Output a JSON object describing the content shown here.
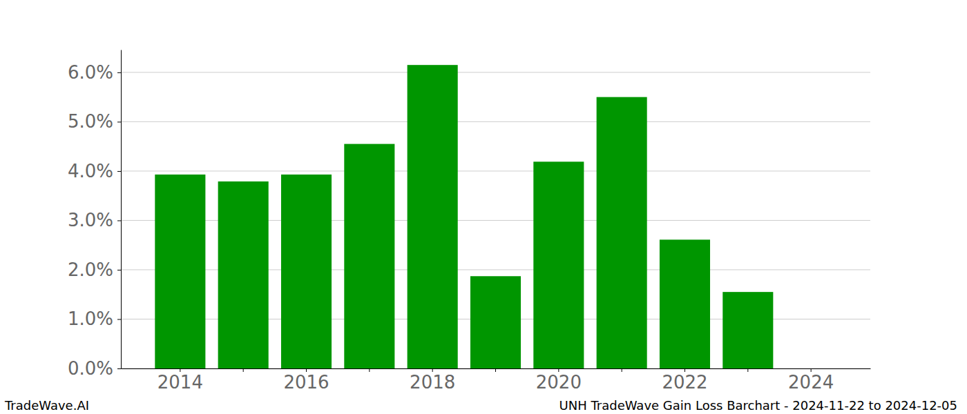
{
  "chart_data": {
    "type": "bar",
    "title": "UNH TradeWave Gain Loss Barchart - 2024-11-22 to 2024-12-05",
    "annotations": [
      "TradeWave.AI"
    ],
    "categories": [
      "2014",
      null,
      "2016",
      null,
      "2018",
      null,
      "2020",
      null,
      "2022",
      null,
      "2024"
    ],
    "values": [
      3.93,
      3.79,
      3.93,
      4.55,
      6.15,
      1.87,
      4.19,
      5.5,
      2.61,
      1.55,
      0
    ],
    "color": "#009600",
    "ylim": [
      0,
      6.46
    ],
    "yticks": [
      {
        "value": 0,
        "label": "0.0%"
      },
      {
        "value": 1,
        "label": "1.0%"
      },
      {
        "value": 2,
        "label": "2.0%"
      },
      {
        "value": 3,
        "label": "3.0%"
      },
      {
        "value": 4,
        "label": "4.0%"
      },
      {
        "value": 5,
        "label": "5.0%"
      },
      {
        "value": 6,
        "label": "6.0%"
      }
    ],
    "grid": true
  }
}
